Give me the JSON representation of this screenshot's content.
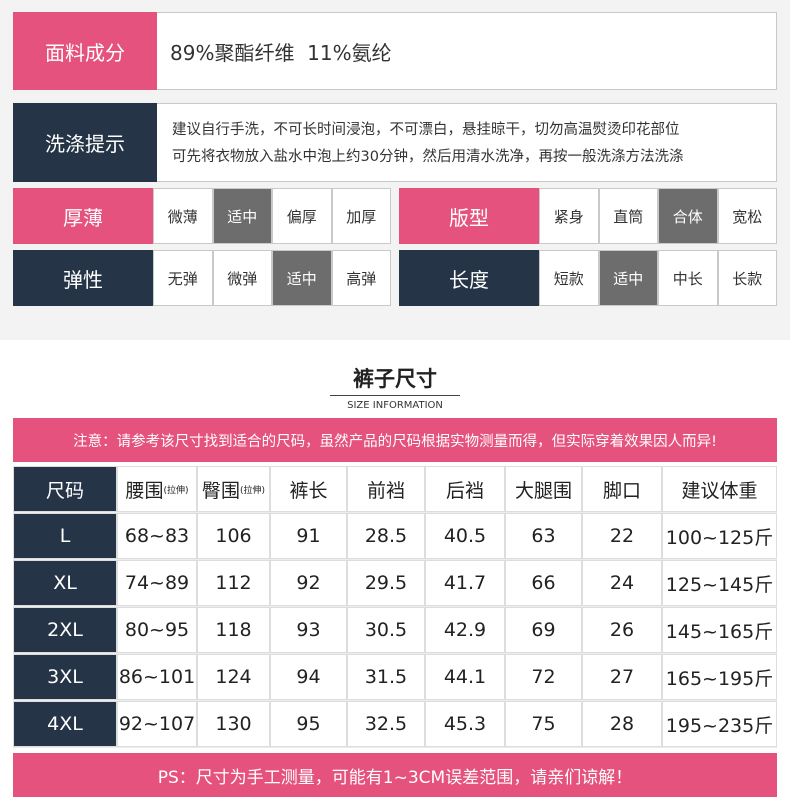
{
  "fabric": {
    "label": "面料成分",
    "text": "89%聚酯纤维  11%氨纶"
  },
  "washing": {
    "label": "洗涤提示",
    "lines": [
      "建议自行手洗，不可长时间浸泡，不可漂白，悬挂晾干，切勿高温熨烫印花部位",
      "可先将衣物放入盐水中泡上约30分钟，然后用清水洗净，再按一般洗涤方法洗涤"
    ]
  },
  "attributes": [
    {
      "label": "厚薄",
      "color": "#e5527e",
      "options": [
        "微薄",
        "适中",
        "偏厚",
        "加厚"
      ],
      "selected": 1
    },
    {
      "label": "版型",
      "color": "#e5527e",
      "options": [
        "紧身",
        "直筒",
        "合体",
        "宽松"
      ],
      "selected": 2
    },
    {
      "label": "弹性",
      "color": "#253447",
      "options": [
        "无弹",
        "微弹",
        "适中",
        "高弹"
      ],
      "selected": 2
    },
    {
      "label": "长度",
      "color": "#253447",
      "options": [
        "短款",
        "适中",
        "中长",
        "长款"
      ],
      "selected": 1
    }
  ],
  "size_section": {
    "title": "裤子尺寸",
    "subtitle": "SIZE INFORMATION",
    "notice": "注意：请参考该尺寸找到适合的尺码，虽然产品的尺码根据实物测量而得，但实际穿着效果因人而异!",
    "footer": "PS：尺寸为手工测量，可能有1~3CM误差范围，请亲们谅解！"
  },
  "table": {
    "headers": [
      {
        "label": "尺码"
      },
      {
        "label": "腰围",
        "note": "(拉伸)"
      },
      {
        "label": "臀围",
        "note": "(拉伸)"
      },
      {
        "label": "裤长"
      },
      {
        "label": "前裆"
      },
      {
        "label": "后裆"
      },
      {
        "label": "大腿围"
      },
      {
        "label": "脚口"
      },
      {
        "label": "建议体重"
      }
    ],
    "rows": [
      [
        "L",
        "68~83",
        "106",
        "91",
        "28.5",
        "40.5",
        "63",
        "22",
        "100~125斤"
      ],
      [
        "XL",
        "74~89",
        "112",
        "92",
        "29.5",
        "41.7",
        "66",
        "24",
        "125~145斤"
      ],
      [
        "2XL",
        "80~95",
        "118",
        "93",
        "30.5",
        "42.9",
        "69",
        "26",
        "145~165斤"
      ],
      [
        "3XL",
        "86~101",
        "124",
        "94",
        "31.5",
        "44.1",
        "72",
        "27",
        "165~195斤"
      ],
      [
        "4XL",
        "92~107",
        "130",
        "95",
        "32.5",
        "45.3",
        "75",
        "28",
        "195~235斤"
      ]
    ]
  }
}
